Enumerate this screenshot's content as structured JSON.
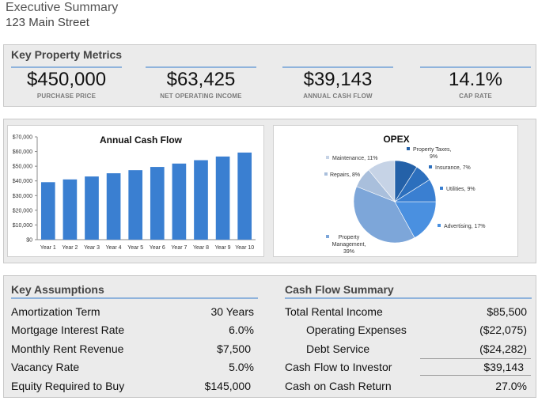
{
  "header": {
    "title": "Executive Summary",
    "address": "123 Main Street"
  },
  "key_metrics": {
    "title": "Key Property Metrics",
    "items": [
      {
        "value": "$450,000",
        "label": "PURCHASE PRICE"
      },
      {
        "value": "$63,425",
        "label": "NET OPERATING INCOME"
      },
      {
        "value": "$39,143",
        "label": "ANNUAL CASH FLOW"
      },
      {
        "value": "14.1%",
        "label": "CAP RATE"
      }
    ]
  },
  "chart_data": [
    {
      "type": "bar",
      "title": "Annual Cash Flow",
      "categories": [
        "Year 1",
        "Year 2",
        "Year 3",
        "Year 4",
        "Year 5",
        "Year 6",
        "Year 7",
        "Year 8",
        "Year 9",
        "Year 10"
      ],
      "values": [
        39143,
        41000,
        43000,
        45200,
        47300,
        49500,
        51800,
        54100,
        56600,
        59300
      ],
      "ylim": [
        0,
        70000
      ],
      "yticks": [
        "$0",
        "$10,000",
        "$20,000",
        "$30,000",
        "$40,000",
        "$50,000",
        "$60,000",
        "$70,000"
      ],
      "colors": {
        "bar": "#3a7fd1"
      }
    },
    {
      "type": "pie",
      "title": "OPEX",
      "slices": [
        {
          "name": "Property Taxes, 9%",
          "value": 9,
          "color": "#2461a8"
        },
        {
          "name": "Insurance, 7%",
          "value": 7,
          "color": "#2c6fbd"
        },
        {
          "name": "Utilities, 9%",
          "value": 9,
          "color": "#3a7fd1"
        },
        {
          "name": "Advertising, 17%",
          "value": 17,
          "color": "#4a90e0"
        },
        {
          "name": "Property Management, 39%",
          "value": 39,
          "color": "#7da6d9"
        },
        {
          "name": "Repairs, 8%",
          "value": 8,
          "color": "#a9bfdc"
        },
        {
          "name": "Maintenance, 11%",
          "value": 11,
          "color": "#c6d3e6"
        }
      ],
      "labels": {
        "taxes": [
          "Property Taxes,",
          "9%"
        ],
        "insurance": "Insurance, 7%",
        "utilities": "Utilities, 9%",
        "advertising": "Advertising, 17%",
        "management": [
          "Property",
          "Management,",
          "39%"
        ],
        "repairs": "Repairs, 8%",
        "maintenance": "Maintenance, 11%"
      }
    }
  ],
  "assumptions": {
    "title": "Key Assumptions",
    "rows": [
      {
        "label": "Amortization Term",
        "value": "30 Years"
      },
      {
        "label": "Mortgage Interest Rate",
        "value": "6.0%"
      },
      {
        "label": "Monthly Rent Revenue",
        "value": "$7,500"
      },
      {
        "label": "Vacancy Rate",
        "value": "5.0%"
      },
      {
        "label": "Equity Required to Buy",
        "value": "$145,000"
      }
    ]
  },
  "cash_flow_summary": {
    "title": "Cash Flow Summary",
    "rows": [
      {
        "label": "Total Rental Income",
        "value": "$85,500"
      },
      {
        "label": "Operating Expenses",
        "value": "($22,075)"
      },
      {
        "label": "Debt Service",
        "value": "($24,282)"
      },
      {
        "label": "Cash Flow to Investor",
        "value": "$39,143"
      },
      {
        "label": "Cash on Cash Return",
        "value": "27.0%"
      }
    ]
  }
}
